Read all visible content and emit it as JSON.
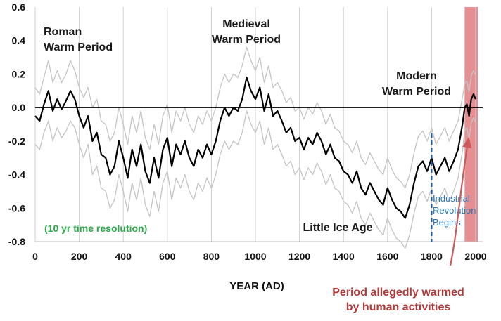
{
  "chart_data": {
    "type": "line",
    "title": "",
    "xlabel": "YEAR (AD)",
    "ylabel": "",
    "xlim": [
      0,
      2010
    ],
    "ylim": [
      -0.8,
      0.6
    ],
    "x_ticks": [
      0,
      200,
      400,
      600,
      800,
      1000,
      1200,
      1400,
      1600,
      1800,
      2000
    ],
    "y_ticks": [
      -0.8,
      -0.6,
      -0.4,
      -0.2,
      0.0,
      0.2,
      0.4,
      0.6
    ],
    "x_tick_labels": [
      "0",
      "200",
      "400",
      "600",
      "800",
      "1000",
      "1200",
      "1400",
      "1600",
      "1800",
      "2000"
    ],
    "y_tick_labels": [
      "-0.8",
      "-0.6",
      "-0.4",
      "-0.2",
      "0.0",
      "0.2",
      "0.4",
      "0.6"
    ],
    "grid": "vertical",
    "zero_line": true,
    "series": [
      {
        "role": "reconstruction",
        "color": "#000000",
        "x": [
          0,
          20,
          40,
          60,
          80,
          100,
          120,
          140,
          160,
          180,
          200,
          220,
          240,
          260,
          280,
          300,
          320,
          340,
          360,
          380,
          400,
          420,
          440,
          460,
          480,
          500,
          520,
          540,
          560,
          580,
          600,
          620,
          640,
          660,
          680,
          700,
          720,
          740,
          760,
          780,
          800,
          820,
          840,
          860,
          880,
          900,
          920,
          940,
          960,
          980,
          1000,
          1020,
          1040,
          1060,
          1080,
          1100,
          1120,
          1140,
          1160,
          1180,
          1200,
          1220,
          1240,
          1260,
          1280,
          1300,
          1320,
          1340,
          1360,
          1380,
          1400,
          1420,
          1440,
          1460,
          1480,
          1500,
          1520,
          1540,
          1560,
          1580,
          1600,
          1620,
          1640,
          1660,
          1680,
          1700,
          1720,
          1740,
          1760,
          1780,
          1800,
          1820,
          1840,
          1860,
          1880,
          1900,
          1920,
          1940,
          1950,
          1960,
          1970,
          1980,
          1990,
          2000
        ],
        "values": [
          -0.05,
          -0.08,
          0.02,
          0.1,
          -0.02,
          0.05,
          -0.01,
          0.04,
          0.1,
          0.05,
          -0.05,
          -0.12,
          -0.05,
          -0.2,
          -0.15,
          -0.28,
          -0.3,
          -0.4,
          -0.35,
          -0.2,
          -0.3,
          -0.42,
          -0.25,
          -0.35,
          -0.22,
          -0.38,
          -0.45,
          -0.3,
          -0.42,
          -0.25,
          -0.18,
          -0.35,
          -0.22,
          -0.28,
          -0.2,
          -0.3,
          -0.35,
          -0.25,
          -0.3,
          -0.22,
          -0.28,
          -0.2,
          -0.08,
          0.0,
          -0.05,
          0.0,
          -0.02,
          0.05,
          0.18,
          0.1,
          0.05,
          0.12,
          -0.02,
          0.08,
          -0.05,
          -0.02,
          -0.08,
          -0.15,
          -0.12,
          -0.2,
          -0.18,
          -0.25,
          -0.18,
          -0.22,
          -0.15,
          -0.2,
          -0.28,
          -0.22,
          -0.3,
          -0.32,
          -0.38,
          -0.4,
          -0.45,
          -0.38,
          -0.48,
          -0.52,
          -0.45,
          -0.5,
          -0.55,
          -0.58,
          -0.48,
          -0.55,
          -0.6,
          -0.62,
          -0.66,
          -0.58,
          -0.45,
          -0.35,
          -0.32,
          -0.38,
          -0.3,
          -0.4,
          -0.35,
          -0.3,
          -0.38,
          -0.32,
          -0.25,
          -0.1,
          0.0,
          0.02,
          -0.05,
          0.05,
          0.08,
          0.05
        ]
      },
      {
        "role": "upper-bound",
        "color": "#c4c4c4",
        "x": [
          0,
          20,
          40,
          60,
          80,
          100,
          120,
          140,
          160,
          180,
          200,
          220,
          240,
          260,
          280,
          300,
          320,
          340,
          360,
          380,
          400,
          420,
          440,
          460,
          480,
          500,
          520,
          540,
          560,
          580,
          600,
          620,
          640,
          660,
          680,
          700,
          720,
          740,
          760,
          780,
          800,
          820,
          840,
          860,
          880,
          900,
          920,
          940,
          960,
          980,
          1000,
          1020,
          1040,
          1060,
          1080,
          1100,
          1120,
          1140,
          1160,
          1180,
          1200,
          1220,
          1240,
          1260,
          1280,
          1300,
          1320,
          1340,
          1360,
          1380,
          1400,
          1420,
          1440,
          1460,
          1480,
          1500,
          1520,
          1540,
          1560,
          1580,
          1600,
          1620,
          1640,
          1660,
          1680,
          1700,
          1720,
          1740,
          1760,
          1780,
          1800,
          1820,
          1840,
          1860,
          1880,
          1900,
          1920,
          1940,
          1950,
          1960,
          1970,
          1980,
          1990,
          2000
        ],
        "values": [
          0.12,
          0.08,
          0.18,
          0.28,
          0.15,
          0.22,
          0.15,
          0.2,
          0.28,
          0.22,
          0.12,
          0.06,
          0.12,
          0.0,
          0.05,
          -0.08,
          -0.1,
          -0.2,
          -0.15,
          0.0,
          -0.1,
          -0.22,
          -0.05,
          -0.15,
          -0.02,
          -0.18,
          -0.25,
          -0.1,
          -0.22,
          -0.05,
          0.02,
          -0.15,
          -0.02,
          -0.08,
          0.0,
          -0.1,
          -0.15,
          -0.05,
          -0.1,
          -0.02,
          -0.08,
          0.0,
          0.12,
          0.2,
          0.15,
          0.2,
          0.18,
          0.25,
          0.36,
          0.28,
          0.22,
          0.3,
          0.15,
          0.25,
          0.12,
          0.15,
          0.1,
          0.03,
          0.06,
          -0.02,
          0.0,
          -0.07,
          0.0,
          -0.04,
          0.03,
          -0.02,
          -0.1,
          -0.04,
          -0.12,
          -0.14,
          -0.2,
          -0.22,
          -0.27,
          -0.2,
          -0.3,
          -0.34,
          -0.27,
          -0.32,
          -0.37,
          -0.4,
          -0.3,
          -0.37,
          -0.42,
          -0.44,
          -0.48,
          -0.4,
          -0.27,
          -0.17,
          -0.14,
          -0.2,
          -0.12,
          -0.22,
          -0.17,
          -0.12,
          -0.2,
          -0.14,
          -0.08,
          0.06,
          0.14,
          0.16,
          0.09,
          0.19,
          0.22,
          0.19
        ]
      },
      {
        "role": "lower-bound",
        "color": "#c4c4c4",
        "x": [
          0,
          20,
          40,
          60,
          80,
          100,
          120,
          140,
          160,
          180,
          200,
          220,
          240,
          260,
          280,
          300,
          320,
          340,
          360,
          380,
          400,
          420,
          440,
          460,
          480,
          500,
          520,
          540,
          560,
          580,
          600,
          620,
          640,
          660,
          680,
          700,
          720,
          740,
          760,
          780,
          800,
          820,
          840,
          860,
          880,
          900,
          920,
          940,
          960,
          980,
          1000,
          1020,
          1040,
          1060,
          1080,
          1100,
          1120,
          1140,
          1160,
          1180,
          1200,
          1220,
          1240,
          1260,
          1280,
          1300,
          1320,
          1340,
          1360,
          1380,
          1400,
          1420,
          1440,
          1460,
          1480,
          1500,
          1520,
          1540,
          1560,
          1580,
          1600,
          1620,
          1640,
          1660,
          1680,
          1700,
          1720,
          1740,
          1760,
          1780,
          1800,
          1820,
          1840,
          1860,
          1880,
          1900,
          1920,
          1940,
          1950,
          1960,
          1970,
          1980,
          1990,
          2000
        ],
        "values": [
          -0.22,
          -0.25,
          -0.15,
          -0.08,
          -0.2,
          -0.12,
          -0.18,
          -0.14,
          -0.08,
          -0.12,
          -0.22,
          -0.3,
          -0.22,
          -0.4,
          -0.35,
          -0.48,
          -0.5,
          -0.6,
          -0.55,
          -0.4,
          -0.5,
          -0.62,
          -0.45,
          -0.55,
          -0.42,
          -0.58,
          -0.65,
          -0.5,
          -0.62,
          -0.45,
          -0.38,
          -0.55,
          -0.42,
          -0.48,
          -0.4,
          -0.5,
          -0.55,
          -0.45,
          -0.5,
          -0.42,
          -0.48,
          -0.4,
          -0.28,
          -0.2,
          -0.25,
          -0.2,
          -0.22,
          -0.15,
          -0.02,
          -0.1,
          -0.15,
          -0.08,
          -0.22,
          -0.12,
          -0.25,
          -0.22,
          -0.28,
          -0.35,
          -0.32,
          -0.4,
          -0.36,
          -0.43,
          -0.36,
          -0.4,
          -0.33,
          -0.38,
          -0.46,
          -0.4,
          -0.48,
          -0.5,
          -0.56,
          -0.58,
          -0.63,
          -0.56,
          -0.66,
          -0.7,
          -0.63,
          -0.68,
          -0.73,
          -0.76,
          -0.66,
          -0.73,
          -0.78,
          -0.8,
          -0.84,
          -0.76,
          -0.63,
          -0.53,
          -0.5,
          -0.56,
          -0.48,
          -0.58,
          -0.53,
          -0.48,
          -0.56,
          -0.5,
          -0.42,
          -0.26,
          -0.14,
          -0.12,
          -0.19,
          -0.09,
          -0.06,
          -0.09
        ]
      }
    ],
    "shaded_region": {
      "x_start": 1950,
      "x_end": 2010,
      "color": "#e07b7f"
    },
    "vertical_marker": {
      "x": 1800,
      "color": "#1f5ea8",
      "style": "dashed"
    },
    "annotations": [
      {
        "id": "roman",
        "lines": [
          "Roman",
          "Warm Period"
        ],
        "color": "#1a1a1a"
      },
      {
        "id": "medieval",
        "lines": [
          "Medieval",
          "Warm Period"
        ],
        "color": "#1a1a1a"
      },
      {
        "id": "modern",
        "lines": [
          "Modern",
          "Warm Period"
        ],
        "color": "#1a1a1a"
      },
      {
        "id": "lia",
        "lines": [
          "Little Ice Age"
        ],
        "color": "#1a1a1a"
      },
      {
        "id": "resolution",
        "lines": [
          "(10 yr time resolution)"
        ],
        "color": "#2eaa4a"
      },
      {
        "id": "industrial",
        "lines": [
          "Industrial",
          "Revolution",
          "Begins"
        ],
        "color": "#2a78b8"
      },
      {
        "id": "human",
        "lines": [
          "Period allegedly warmed",
          "by human activities"
        ],
        "color": "#b03a3a"
      }
    ],
    "arrow_color": "#cc5a5a"
  }
}
